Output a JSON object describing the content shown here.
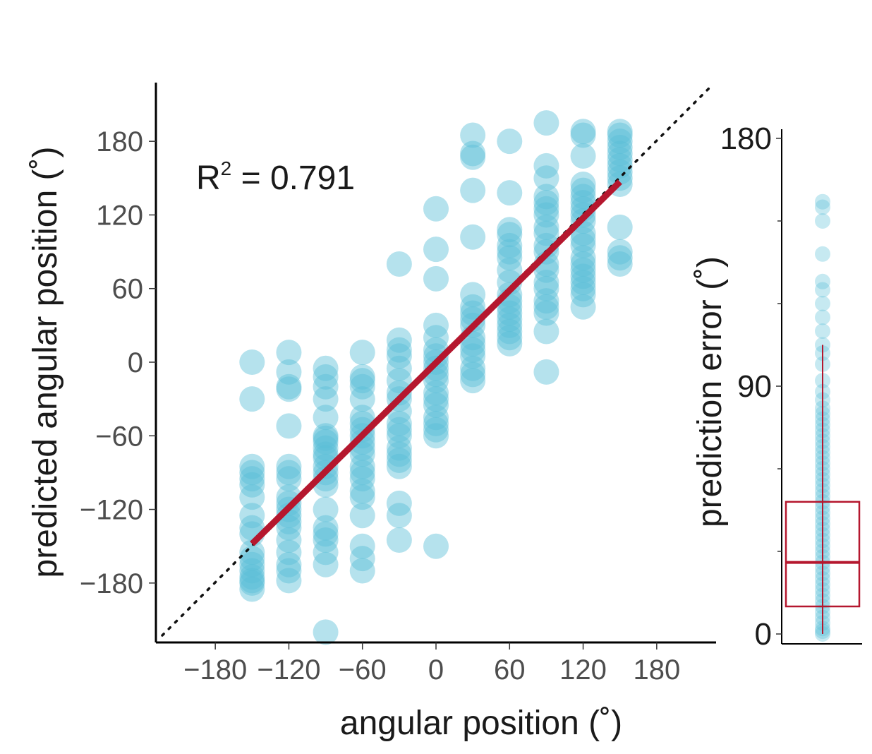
{
  "chart_data": [
    {
      "type": "scatter",
      "xlabel": "angular position (˚)",
      "ylabel": "predicted angular position (˚)",
      "annotation": {
        "text_main": "R",
        "superscript": "2",
        "text_rest": " = 0.791"
      },
      "xlim": [
        -225,
        225
      ],
      "ylim": [
        -225,
        225
      ],
      "xticks": [
        -180,
        -120,
        -60,
        0,
        60,
        120,
        180
      ],
      "xtick_labels": [
        "−180",
        "−120",
        "−60",
        "0",
        "60",
        "120",
        "180"
      ],
      "yticks": [
        -180,
        -120,
        -60,
        0,
        60,
        120,
        180
      ],
      "ytick_labels": [
        "−180",
        "−120",
        "−60",
        "0",
        "60",
        "120",
        "180"
      ],
      "grid": false,
      "identity_line": {
        "style": "dotted",
        "color": "#111111"
      },
      "regression_line": {
        "x": [
          -150,
          150
        ],
        "y": [
          -148,
          147
        ],
        "color": "#b5172e"
      },
      "point_color": "#5bbfd6",
      "series": [
        {
          "x": -150,
          "values": [
            0,
            -30,
            -85,
            -90,
            -95,
            -100,
            -110,
            -125,
            -135,
            -140,
            -155,
            -160,
            -165,
            -170,
            -175,
            -178,
            -180,
            -185
          ]
        },
        {
          "x": -120,
          "values": [
            8,
            -8,
            -20,
            -22,
            -52,
            -85,
            -90,
            -95,
            -110,
            -115,
            -120,
            -125,
            -130,
            -135,
            -145,
            -155,
            -165,
            -170,
            -178
          ]
        },
        {
          "x": -90,
          "values": [
            -5,
            -12,
            -20,
            -30,
            -45,
            -60,
            -62,
            -65,
            -70,
            -75,
            -78,
            -85,
            -90,
            -95,
            -100,
            -120,
            -135,
            -140,
            -145,
            -155,
            -165,
            -220
          ]
        },
        {
          "x": -60,
          "values": [
            8,
            -12,
            -15,
            -20,
            -30,
            -45,
            -50,
            -55,
            -60,
            -65,
            -70,
            -75,
            -85,
            -90,
            -95,
            -105,
            -110,
            -125,
            -150,
            -160,
            -170
          ]
        },
        {
          "x": -30,
          "values": [
            80,
            18,
            10,
            5,
            -5,
            -15,
            -25,
            -30,
            -40,
            -50,
            -55,
            -60,
            -70,
            -75,
            -80,
            -85,
            -115,
            -125,
            -145
          ]
        },
        {
          "x": 0,
          "values": [
            125,
            92,
            68,
            30,
            20,
            10,
            5,
            0,
            -5,
            -10,
            -15,
            -25,
            -30,
            -35,
            -45,
            -50,
            -55,
            -60,
            -150
          ]
        },
        {
          "x": 30,
          "values": [
            185,
            170,
            167,
            140,
            102,
            55,
            45,
            40,
            35,
            30,
            20,
            15,
            10,
            5,
            -5,
            -10,
            -15
          ]
        },
        {
          "x": 60,
          "values": [
            180,
            138,
            108,
            104,
            95,
            90,
            85,
            75,
            65,
            55,
            50,
            45,
            40,
            35,
            30,
            25,
            20,
            15
          ]
        },
        {
          "x": 90,
          "values": [
            195,
            160,
            150,
            135,
            130,
            125,
            120,
            110,
            105,
            95,
            90,
            80,
            75,
            65,
            60,
            50,
            45,
            40,
            25,
            -8
          ]
        },
        {
          "x": 120,
          "values": [
            188,
            185,
            168,
            145,
            140,
            135,
            130,
            125,
            120,
            115,
            105,
            100,
            95,
            85,
            80,
            75,
            70,
            65,
            60,
            55,
            45
          ]
        },
        {
          "x": 150,
          "values": [
            188,
            185,
            180,
            175,
            170,
            165,
            160,
            155,
            150,
            145,
            110,
            90,
            85,
            80
          ]
        }
      ]
    },
    {
      "type": "box",
      "ylabel": "prediction error (˚)",
      "ylim": [
        -2,
        182
      ],
      "yticks": [
        0,
        90,
        180
      ],
      "ytick_labels": [
        "0",
        "90",
        "180"
      ],
      "minor_yticks": [
        30,
        60,
        120,
        150
      ],
      "median": 26,
      "q1": 10,
      "q3": 48,
      "whisker_low": 0,
      "whisker_high": 105,
      "box_color": "#b5172e",
      "point_color": "#5bbfd6",
      "points": [
        157,
        155,
        150,
        138,
        128,
        125,
        120,
        115,
        110,
        105,
        102,
        98,
        92,
        88,
        85,
        82,
        80,
        78,
        76,
        74,
        72,
        70,
        68,
        66,
        64,
        62,
        60,
        58,
        56,
        54,
        52,
        50,
        48,
        46,
        44,
        42,
        40,
        38,
        36,
        34,
        32,
        30,
        28,
        26,
        24,
        22,
        20,
        18,
        16,
        14,
        12,
        10,
        8,
        6,
        4,
        2,
        1,
        0
      ]
    }
  ]
}
